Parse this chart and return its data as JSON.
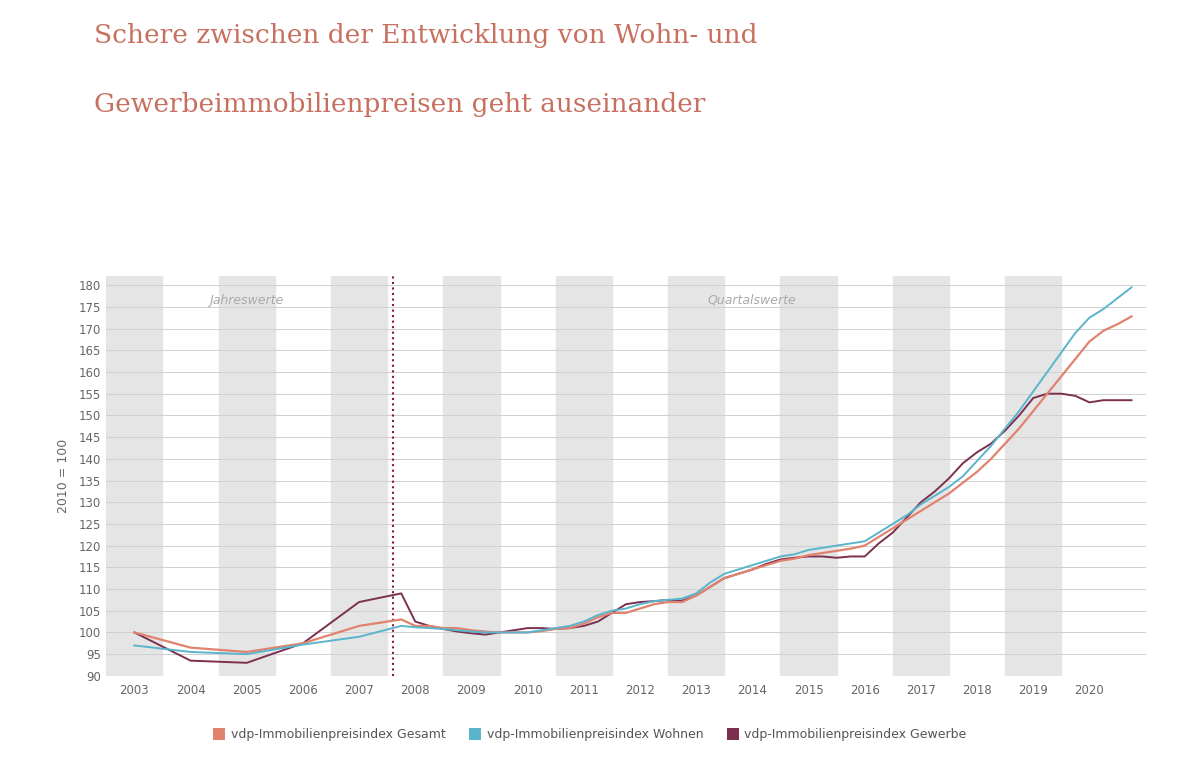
{
  "title_line1": "Schere zwischen der Entwicklung von Wohn- und",
  "title_line2": "Gewerbeimmobilienpreisen geht auseinander",
  "title_color": "#c87060",
  "ylabel": "2010 = 100",
  "background_color": "#ffffff",
  "plot_bg_color": "#ffffff",
  "stripe_color": "#e5e5e5",
  "ylim": [
    90,
    182
  ],
  "yticks": [
    90,
    95,
    100,
    105,
    110,
    115,
    120,
    125,
    130,
    135,
    140,
    145,
    150,
    155,
    160,
    165,
    170,
    175,
    180
  ],
  "vline_x": 2007.6,
  "jahreswerte_label": "Jahreswerte",
  "quartalswerte_label": "Quartalswerte",
  "legend_items": [
    {
      "label": "vdp-Immobilienpreisindex Gesamt",
      "color": "#e0836e"
    },
    {
      "label": "vdp-Immobilienpreisindex Wohnen",
      "color": "#5ab5cc"
    },
    {
      "label": "vdp-Immobilienpreisindex Gewerbe",
      "color": "#7b3050"
    }
  ],
  "gesamt_x": [
    2003,
    2004,
    2005,
    2006,
    2007,
    2007.75,
    2008.0,
    2008.25,
    2008.5,
    2008.75,
    2009.0,
    2009.25,
    2009.5,
    2009.75,
    2010.0,
    2010.25,
    2010.5,
    2010.75,
    2011.0,
    2011.25,
    2011.5,
    2011.75,
    2012.0,
    2012.25,
    2012.5,
    2012.75,
    2013.0,
    2013.25,
    2013.5,
    2013.75,
    2014.0,
    2014.25,
    2014.5,
    2014.75,
    2015.0,
    2015.25,
    2015.5,
    2015.75,
    2016.0,
    2016.25,
    2016.5,
    2016.75,
    2017.0,
    2017.25,
    2017.5,
    2017.75,
    2018.0,
    2018.25,
    2018.5,
    2018.75,
    2019.0,
    2019.25,
    2019.5,
    2019.75,
    2020.0,
    2020.25,
    2020.5,
    2020.75
  ],
  "gesamt_y": [
    100.0,
    96.5,
    95.5,
    97.5,
    101.5,
    103.0,
    101.5,
    101.5,
    101.0,
    101.0,
    100.5,
    100.2,
    100.0,
    100.0,
    100.0,
    100.3,
    100.8,
    101.0,
    102.0,
    103.5,
    104.5,
    104.5,
    105.5,
    106.5,
    107.0,
    107.0,
    108.5,
    110.5,
    112.5,
    113.5,
    114.5,
    115.5,
    116.5,
    117.0,
    117.8,
    118.3,
    118.8,
    119.3,
    120.0,
    122.0,
    124.0,
    126.0,
    128.0,
    130.0,
    132.0,
    134.5,
    137.0,
    140.0,
    143.5,
    147.0,
    151.0,
    155.0,
    159.0,
    163.0,
    167.0,
    169.5,
    171.0,
    172.8
  ],
  "wohnen_x": [
    2003,
    2004,
    2005,
    2006,
    2007,
    2007.75,
    2008.0,
    2008.25,
    2008.5,
    2008.75,
    2009.0,
    2009.25,
    2009.5,
    2009.75,
    2010.0,
    2010.25,
    2010.5,
    2010.75,
    2011.0,
    2011.25,
    2011.5,
    2011.75,
    2012.0,
    2012.25,
    2012.5,
    2012.75,
    2013.0,
    2013.25,
    2013.5,
    2013.75,
    2014.0,
    2014.25,
    2014.5,
    2014.75,
    2015.0,
    2015.25,
    2015.5,
    2015.75,
    2016.0,
    2016.25,
    2016.5,
    2016.75,
    2017.0,
    2017.25,
    2017.5,
    2017.75,
    2018.0,
    2018.25,
    2018.5,
    2018.75,
    2019.0,
    2019.25,
    2019.5,
    2019.75,
    2020.0,
    2020.25,
    2020.5,
    2020.75
  ],
  "wohnen_y": [
    97.0,
    95.5,
    95.0,
    97.2,
    99.0,
    101.5,
    101.2,
    101.0,
    100.8,
    100.5,
    100.2,
    100.0,
    100.0,
    100.0,
    100.0,
    100.5,
    101.0,
    101.5,
    102.5,
    104.0,
    105.0,
    105.5,
    106.5,
    107.2,
    107.5,
    107.8,
    109.0,
    111.5,
    113.5,
    114.5,
    115.5,
    116.5,
    117.5,
    118.0,
    119.0,
    119.5,
    120.0,
    120.5,
    121.0,
    123.0,
    125.0,
    127.0,
    129.5,
    131.5,
    133.5,
    136.0,
    139.5,
    143.0,
    147.0,
    151.0,
    155.5,
    160.0,
    164.5,
    169.0,
    172.5,
    174.5,
    177.0,
    179.5
  ],
  "gewerbe_x": [
    2003,
    2004,
    2005,
    2006,
    2007,
    2007.75,
    2008.0,
    2008.25,
    2008.5,
    2008.75,
    2009.0,
    2009.25,
    2009.5,
    2009.75,
    2010.0,
    2010.25,
    2010.5,
    2010.75,
    2011.0,
    2011.25,
    2011.5,
    2011.75,
    2012.0,
    2012.25,
    2012.5,
    2012.75,
    2013.0,
    2013.25,
    2013.5,
    2013.75,
    2014.0,
    2014.25,
    2014.5,
    2014.75,
    2015.0,
    2015.25,
    2015.5,
    2015.75,
    2016.0,
    2016.25,
    2016.5,
    2016.75,
    2017.0,
    2017.25,
    2017.5,
    2017.75,
    2018.0,
    2018.25,
    2018.5,
    2018.75,
    2019.0,
    2019.25,
    2019.5,
    2019.75,
    2020.0,
    2020.25,
    2020.5,
    2020.75
  ],
  "gewerbe_y": [
    100.0,
    93.5,
    93.0,
    97.5,
    107.0,
    109.0,
    102.5,
    101.5,
    100.8,
    100.2,
    99.8,
    99.5,
    100.0,
    100.5,
    101.0,
    101.0,
    100.8,
    101.0,
    101.5,
    102.5,
    104.5,
    106.5,
    107.0,
    107.2,
    107.5,
    107.3,
    108.5,
    110.5,
    112.5,
    113.5,
    114.5,
    115.8,
    116.8,
    117.2,
    117.5,
    117.5,
    117.2,
    117.5,
    117.5,
    120.5,
    123.0,
    126.5,
    130.0,
    132.5,
    135.5,
    139.0,
    141.5,
    143.5,
    146.5,
    150.0,
    154.0,
    155.0,
    155.0,
    154.5,
    153.0,
    153.5,
    153.5,
    153.5
  ]
}
